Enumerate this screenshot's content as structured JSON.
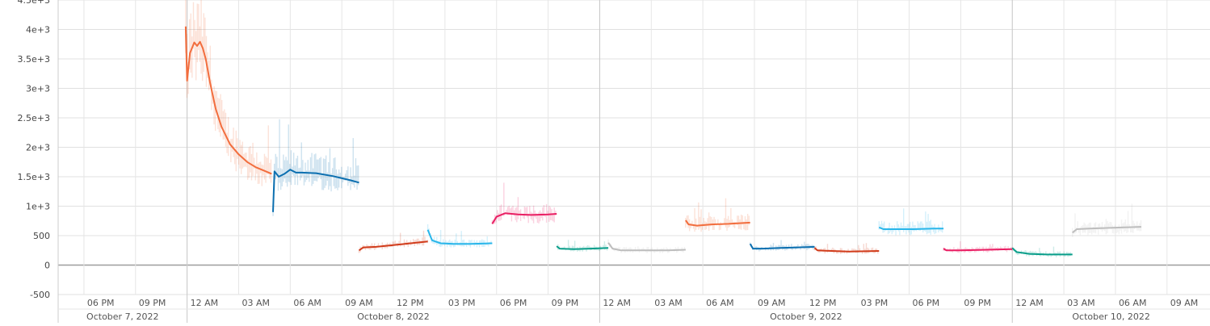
{
  "chart_data": {
    "type": "line",
    "title": "",
    "xlabel": "",
    "ylabel": "",
    "ylim": [
      -500,
      4500
    ],
    "y_ticks": [
      -500,
      0,
      500,
      1000,
      1500,
      2000,
      2500,
      3000,
      3500,
      4000,
      4500
    ],
    "y_tick_labels": [
      "-500",
      "0",
      "500",
      "1e+3",
      "1.5e+3",
      "2e+3",
      "2.5e+3",
      "3e+3",
      "3.5e+3",
      "4e+3",
      "4.5e+3"
    ],
    "x_range": [
      "2022-10-07T16:30",
      "2022-10-10T11:30"
    ],
    "x_ticks": [
      "2022-10-07T18:00",
      "2022-10-07T21:00",
      "2022-10-08T00:00",
      "2022-10-08T03:00",
      "2022-10-08T06:00",
      "2022-10-08T09:00",
      "2022-10-08T12:00",
      "2022-10-08T15:00",
      "2022-10-08T18:00",
      "2022-10-08T21:00",
      "2022-10-09T00:00",
      "2022-10-09T03:00",
      "2022-10-09T06:00",
      "2022-10-09T09:00",
      "2022-10-09T12:00",
      "2022-10-09T15:00",
      "2022-10-09T18:00",
      "2022-10-09T21:00",
      "2022-10-10T00:00",
      "2022-10-10T03:00",
      "2022-10-10T06:00",
      "2022-10-10T09:00"
    ],
    "x_tick_labels": [
      "06 PM",
      "09 PM",
      "12 AM",
      "03 AM",
      "06 AM",
      "09 AM",
      "12 PM",
      "03 PM",
      "06 PM",
      "09 PM",
      "12 AM",
      "03 AM",
      "06 AM",
      "09 AM",
      "12 PM",
      "03 PM",
      "06 PM",
      "09 PM",
      "12 AM",
      "03 AM",
      "06 AM",
      "09 AM"
    ],
    "date_labels": [
      {
        "label": "October 7, 2022",
        "start": "2022-10-07T16:30",
        "end": "2022-10-08T00:00"
      },
      {
        "label": "October 8, 2022",
        "start": "2022-10-08T00:00",
        "end": "2022-10-09T00:00"
      },
      {
        "label": "October 9, 2022",
        "start": "2022-10-09T00:00",
        "end": "2022-10-10T00:00"
      },
      {
        "label": "October 10, 2022",
        "start": "2022-10-10T00:00",
        "end": "2022-10-10T11:30"
      }
    ],
    "grid": true,
    "series": [
      {
        "color": "#f26d3d",
        "x": [
          "2022-10-07T23:55",
          "2022-10-08T00:00",
          "2022-10-08T00:10",
          "2022-10-08T00:25",
          "2022-10-08T00:35",
          "2022-10-08T00:45",
          "2022-10-08T00:55",
          "2022-10-08T01:05",
          "2022-10-08T01:20",
          "2022-10-08T01:40",
          "2022-10-08T02:00",
          "2022-10-08T02:30",
          "2022-10-08T03:00",
          "2022-10-08T03:30",
          "2022-10-08T04:00",
          "2022-10-08T04:30",
          "2022-10-08T04:55"
        ],
        "values": [
          4050,
          3130,
          3600,
          3780,
          3720,
          3790,
          3680,
          3500,
          3100,
          2650,
          2350,
          2050,
          1880,
          1750,
          1660,
          1600,
          1550
        ]
      },
      {
        "color": "#0b6fb0",
        "x": [
          "2022-10-08T05:00",
          "2022-10-08T05:05",
          "2022-10-08T05:20",
          "2022-10-08T05:40",
          "2022-10-08T06:00",
          "2022-10-08T06:20",
          "2022-10-08T06:40",
          "2022-10-08T07:30",
          "2022-10-08T08:30",
          "2022-10-08T09:30",
          "2022-10-08T10:00"
        ],
        "values": [
          900,
          1590,
          1500,
          1550,
          1620,
          1570,
          1570,
          1560,
          1510,
          1440,
          1400
        ]
      },
      {
        "color": "#d13c1b",
        "x": [
          "2022-10-08T10:00",
          "2022-10-08T10:15",
          "2022-10-08T11:00",
          "2022-10-08T12:00",
          "2022-10-08T13:00",
          "2022-10-08T14:00"
        ],
        "values": [
          250,
          300,
          310,
          340,
          370,
          400
        ]
      },
      {
        "color": "#29b6ea",
        "x": [
          "2022-10-08T14:00",
          "2022-10-08T14:15",
          "2022-10-08T14:45",
          "2022-10-08T15:30",
          "2022-10-08T16:30",
          "2022-10-08T17:45"
        ],
        "values": [
          600,
          420,
          370,
          360,
          360,
          370
        ]
      },
      {
        "color": "#e91e63",
        "x": [
          "2022-10-08T17:45",
          "2022-10-08T18:00",
          "2022-10-08T18:30",
          "2022-10-08T19:15",
          "2022-10-08T20:00",
          "2022-10-08T21:00",
          "2022-10-08T21:30"
        ],
        "values": [
          700,
          820,
          880,
          860,
          850,
          860,
          870
        ]
      },
      {
        "color": "#0a9e8a",
        "x": [
          "2022-10-08T21:30",
          "2022-10-08T21:40",
          "2022-10-08T22:30",
          "2022-10-08T23:30",
          "2022-10-09T00:30"
        ],
        "values": [
          320,
          280,
          270,
          280,
          290
        ]
      },
      {
        "color": "#bdbdbd",
        "x": [
          "2022-10-09T00:30",
          "2022-10-09T00:45",
          "2022-10-09T01:15",
          "2022-10-09T02:30",
          "2022-10-09T04:00",
          "2022-10-09T05:00"
        ],
        "values": [
          380,
          280,
          250,
          250,
          250,
          260
        ]
      },
      {
        "color": "#f26d3d",
        "x": [
          "2022-10-09T05:00",
          "2022-10-09T05:10",
          "2022-10-09T05:40",
          "2022-10-09T06:30",
          "2022-10-09T07:30",
          "2022-10-09T08:45"
        ],
        "values": [
          760,
          690,
          670,
          690,
          700,
          720
        ]
      },
      {
        "color": "#0b6fb0",
        "x": [
          "2022-10-09T08:45",
          "2022-10-09T08:55",
          "2022-10-09T09:30",
          "2022-10-09T10:30",
          "2022-10-09T11:30",
          "2022-10-09T12:30"
        ],
        "values": [
          360,
          280,
          280,
          290,
          300,
          310
        ]
      },
      {
        "color": "#d13c1b",
        "x": [
          "2022-10-09T12:30",
          "2022-10-09T12:40",
          "2022-10-09T13:30",
          "2022-10-09T14:30",
          "2022-10-09T16:15"
        ],
        "values": [
          290,
          250,
          240,
          230,
          240
        ]
      },
      {
        "color": "#29b6ea",
        "x": [
          "2022-10-09T16:15",
          "2022-10-09T16:30",
          "2022-10-09T17:15",
          "2022-10-09T18:15",
          "2022-10-09T19:30",
          "2022-10-09T20:00"
        ],
        "values": [
          640,
          610,
          610,
          610,
          620,
          620
        ]
      },
      {
        "color": "#e91e63",
        "x": [
          "2022-10-09T20:00",
          "2022-10-09T20:10",
          "2022-10-09T21:00",
          "2022-10-09T22:30",
          "2022-10-10T00:00"
        ],
        "values": [
          280,
          250,
          250,
          260,
          270
        ]
      },
      {
        "color": "#0a9e8a",
        "x": [
          "2022-10-10T00:00",
          "2022-10-10T00:15",
          "2022-10-10T01:00",
          "2022-10-10T02:00",
          "2022-10-10T03:30"
        ],
        "values": [
          290,
          220,
          190,
          180,
          180
        ]
      },
      {
        "color": "#bdbdbd",
        "x": [
          "2022-10-10T03:30",
          "2022-10-10T03:45",
          "2022-10-10T04:30",
          "2022-10-10T05:30",
          "2022-10-10T06:30",
          "2022-10-10T07:30"
        ],
        "values": [
          550,
          610,
          620,
          630,
          640,
          650
        ]
      }
    ]
  }
}
